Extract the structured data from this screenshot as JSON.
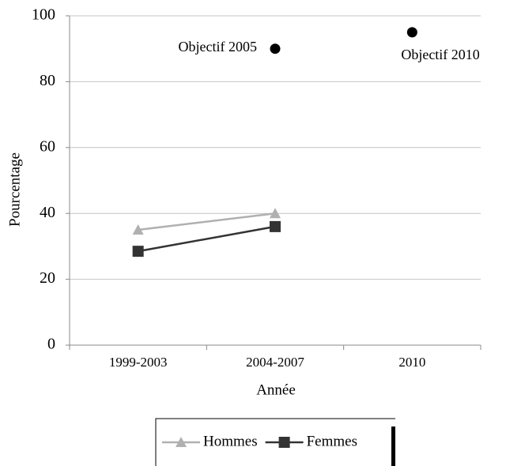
{
  "chart_data": {
    "type": "line",
    "categories": [
      "1999-2003",
      "2004-2007",
      "2010"
    ],
    "series": [
      {
        "name": "Hommes",
        "color": "#b0b0b0",
        "marker": "triangle",
        "values": [
          35,
          40,
          null
        ]
      },
      {
        "name": "Femmes",
        "color": "#333333",
        "marker": "square",
        "values": [
          28.5,
          36,
          null
        ]
      }
    ],
    "targets": [
      {
        "label": "Objectif 2005",
        "x": "2004-2007",
        "value": 90
      },
      {
        "label": "Objectif 2010",
        "x": "2010",
        "value": 95
      }
    ],
    "ylim": [
      0,
      100
    ],
    "yticks": [
      0,
      20,
      40,
      60,
      80,
      100
    ],
    "grid": true,
    "xlabel": "Année",
    "ylabel": "Pourcentage",
    "legend": "bottom"
  }
}
